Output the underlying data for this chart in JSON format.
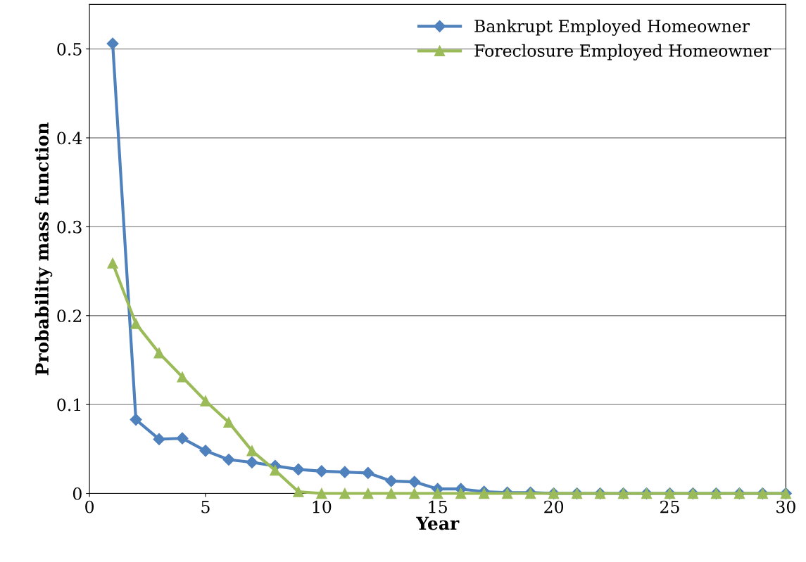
{
  "chart_data": {
    "type": "line",
    "xlabel": "Year",
    "ylabel": "Probability mass function",
    "x": [
      1,
      2,
      3,
      4,
      5,
      6,
      7,
      8,
      9,
      10,
      11,
      12,
      13,
      14,
      15,
      16,
      17,
      18,
      19,
      20,
      21,
      22,
      23,
      24,
      25,
      26,
      27,
      28,
      29,
      30
    ],
    "series": [
      {
        "name": "Bankrupt Employed Homeowner",
        "color": "#4f81bd",
        "marker": "diamond",
        "values": [
          0.506,
          0.083,
          0.061,
          0.062,
          0.048,
          0.038,
          0.035,
          0.031,
          0.027,
          0.025,
          0.024,
          0.023,
          0.014,
          0.013,
          0.005,
          0.005,
          0.002,
          0.001,
          0.001,
          0,
          0,
          0,
          0,
          0,
          0,
          0,
          0,
          0,
          0,
          0
        ]
      },
      {
        "name": "Foreclosure Employed Homeowner",
        "color": "#9bbb59",
        "marker": "triangle",
        "values": [
          0.259,
          0.191,
          0.158,
          0.131,
          0.104,
          0.08,
          0.048,
          0.026,
          0.002,
          0,
          0,
          0,
          0,
          0,
          0,
          0,
          0,
          0,
          0,
          0,
          0,
          0,
          0,
          0,
          0,
          0,
          0,
          0,
          0,
          0
        ]
      }
    ],
    "xlim": [
      0,
      30
    ],
    "xticks": [
      0,
      5,
      10,
      15,
      20,
      25,
      30
    ],
    "ylim": [
      0,
      0.55
    ],
    "yticks": [
      0,
      0.1,
      0.2,
      0.3,
      0.4,
      0.5
    ],
    "grid": "y",
    "legend": "top right",
    "line_style": "solid"
  }
}
